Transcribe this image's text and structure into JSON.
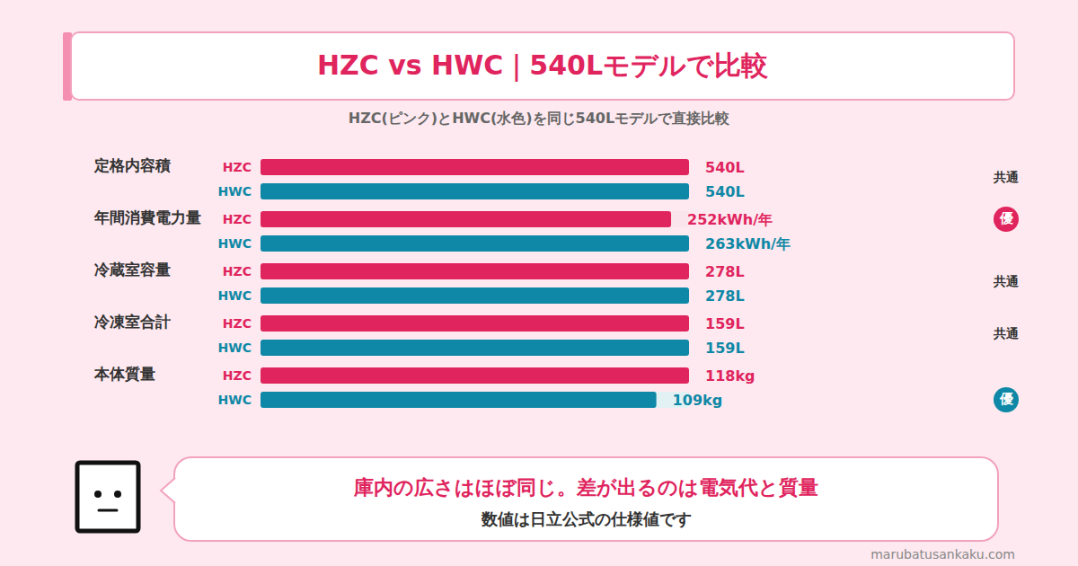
{
  "header": {
    "title": "HZC vs HWC｜540Lモデルで比較",
    "subtitle": "HZC(ピンク)とHWC(水色)を同じ540Lモデルで直接比較"
  },
  "chart_data": [
    {
      "type": "bar",
      "orientation": "horizontal",
      "title": "定格内容積",
      "categories": [
        "HZC",
        "HWC"
      ],
      "values": [
        540,
        540
      ],
      "value_labels": [
        "540L",
        "540L"
      ],
      "colors": [
        "#e0245e",
        "#0e88a6"
      ],
      "xlim": [
        0,
        540
      ],
      "tick_labels": "y",
      "data_labels": true,
      "verdict": {
        "label": "共通"
      }
    },
    {
      "type": "bar",
      "orientation": "horizontal",
      "title": "年間消費電力量",
      "categories": [
        "HZC",
        "HWC"
      ],
      "values": [
        252,
        263
      ],
      "value_labels": [
        "252kWh/年",
        "263kWh/年"
      ],
      "colors": [
        "#e0245e",
        "#0e88a6"
      ],
      "xlim": [
        0,
        263
      ],
      "tick_labels": "y",
      "data_labels": true,
      "verdict": {
        "label": "優",
        "winner": "HZC"
      }
    },
    {
      "type": "bar",
      "orientation": "horizontal",
      "title": "冷蔵室容量",
      "categories": [
        "HZC",
        "HWC"
      ],
      "values": [
        278,
        278
      ],
      "value_labels": [
        "278L",
        "278L"
      ],
      "colors": [
        "#e0245e",
        "#0e88a6"
      ],
      "xlim": [
        0,
        278
      ],
      "tick_labels": "y",
      "data_labels": true,
      "verdict": {
        "label": "共通"
      }
    },
    {
      "type": "bar",
      "orientation": "horizontal",
      "title": "冷凍室合計",
      "categories": [
        "HZC",
        "HWC"
      ],
      "values": [
        159,
        159
      ],
      "value_labels": [
        "159L",
        "159L"
      ],
      "colors": [
        "#e0245e",
        "#0e88a6"
      ],
      "xlim": [
        0,
        159
      ],
      "tick_labels": "y",
      "data_labels": true,
      "verdict": {
        "label": "共通"
      }
    },
    {
      "type": "bar",
      "orientation": "horizontal",
      "title": "本体質量",
      "categories": [
        "HZC",
        "HWC"
      ],
      "values": [
        118,
        109
      ],
      "value_labels": [
        "118kg",
        "109kg"
      ],
      "colors": [
        "#e0245e",
        "#0e88a6"
      ],
      "xlim": [
        0,
        118
      ],
      "tick_labels": "y",
      "data_labels": true,
      "verdict": {
        "label": "優",
        "winner": "HWC"
      }
    }
  ],
  "message": {
    "text": "庫内の広さはほぼ同じ。差が出るのは電気代と質量",
    "note": "数値は日立公式の仕様値です"
  },
  "source": "marubatusankaku.com"
}
